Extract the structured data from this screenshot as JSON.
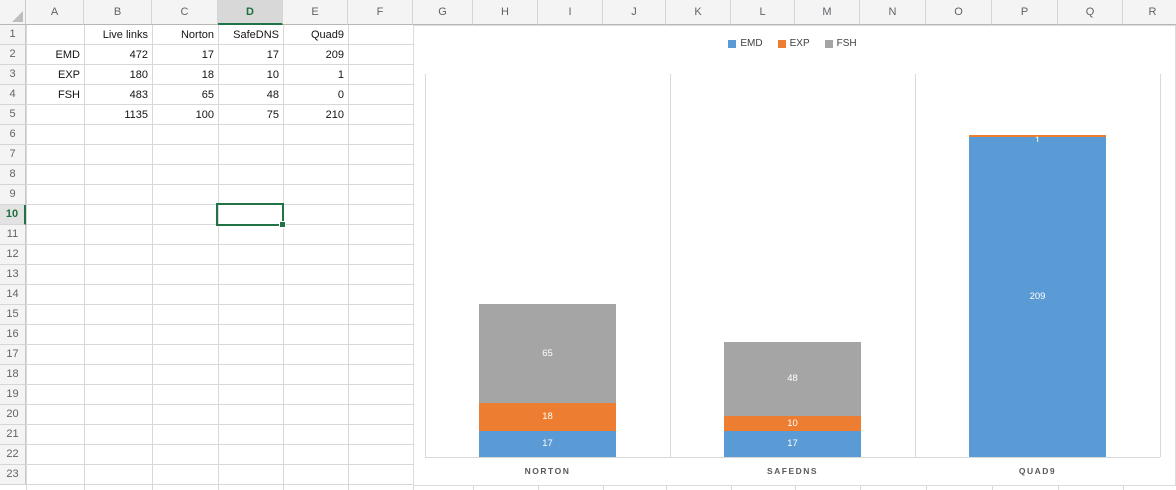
{
  "sheet": {
    "columns": [
      "A",
      "B",
      "C",
      "D",
      "E",
      "F",
      "G",
      "H",
      "I",
      "J",
      "K",
      "L",
      "M",
      "N",
      "O",
      "P",
      "Q",
      "R"
    ],
    "rows": [
      "1",
      "2",
      "3",
      "4",
      "5",
      "6",
      "7",
      "8",
      "9",
      "10",
      "11",
      "12",
      "13",
      "14",
      "15",
      "16",
      "17",
      "18",
      "19",
      "20",
      "21",
      "22",
      "23"
    ],
    "selected_column": "D",
    "selected_row": "10",
    "selected_cell": "D10",
    "cell_rows": [
      {
        "row": 1,
        "cells": {
          "B": "Live links",
          "C": "Norton",
          "D": "SafeDNS",
          "E": "Quad9"
        }
      },
      {
        "row": 2,
        "cells": {
          "A": "EMD",
          "B": "472",
          "C": "17",
          "D": "17",
          "E": "209"
        }
      },
      {
        "row": 3,
        "cells": {
          "A": "EXP",
          "B": "180",
          "C": "18",
          "D": "10",
          "E": "1"
        }
      },
      {
        "row": 4,
        "cells": {
          "A": "FSH",
          "B": "483",
          "C": "65",
          "D": "48",
          "E": "0"
        }
      },
      {
        "row": 5,
        "cells": {
          "B": "1135",
          "C": "100",
          "D": "75",
          "E": "210"
        }
      }
    ]
  },
  "chart_data": {
    "type": "bar",
    "stacked": true,
    "categories": [
      "NORTON",
      "SAFEDNS",
      "QUAD9"
    ],
    "series": [
      {
        "name": "EMD",
        "color": "#5B9BD5",
        "values": [
          17,
          17,
          209
        ]
      },
      {
        "name": "EXP",
        "color": "#ED7D31",
        "values": [
          18,
          10,
          1
        ]
      },
      {
        "name": "FSH",
        "color": "#A5A5A5",
        "values": [
          65,
          48,
          0
        ]
      }
    ],
    "title": "",
    "xlabel": "",
    "ylabel": "",
    "ylim": [
      0,
      250
    ],
    "legend_position": "top",
    "data_labels": true,
    "gridlines": "vertical category separators only"
  },
  "colors": {
    "selection_green": "#217346",
    "series_emd": "#5B9BD5",
    "series_exp": "#ED7D31",
    "series_fsh": "#A5A5A5",
    "gridline": "#D8D8D8"
  }
}
